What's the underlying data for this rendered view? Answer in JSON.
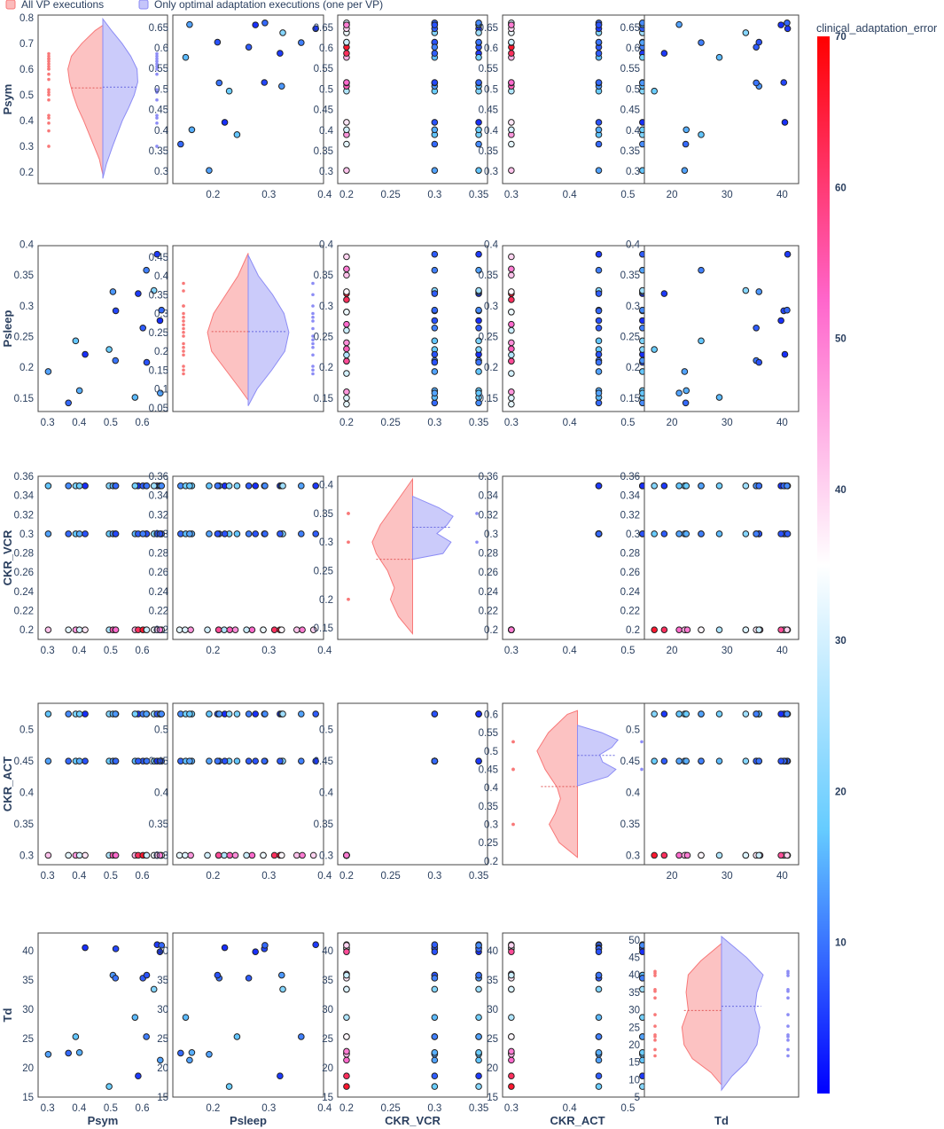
{
  "legend": {
    "all_label": "All VP executions",
    "optimal_label": "Only optimal adaptation executions (one per VP)",
    "all_color": "#f87878",
    "optimal_color": "#8c8cf5"
  },
  "colorbar": {
    "title": "clinical_adaptation_error",
    "range": [
      0,
      70
    ],
    "ticks": [
      "10",
      "20",
      "30",
      "40",
      "50",
      "60",
      "70"
    ],
    "tick_values": [
      10,
      20,
      30,
      40,
      50,
      60,
      70
    ],
    "colorscale": [
      "#0000ff",
      "#66ccff",
      "#ffffff",
      "#ff66cc",
      "#ff0000"
    ]
  },
  "chart_data": {
    "type": "scatter",
    "matrix": "scatter-matrix with split violin diagonal",
    "variables": [
      "Psym",
      "Psleep",
      "CKR_VCR",
      "CKR_ACT",
      "Td"
    ],
    "row_labels": [
      "Psym",
      "Psleep",
      "CKR_VCR",
      "CKR_ACT",
      "Td"
    ],
    "col_labels": [
      "Psym",
      "Psleep",
      "CKR_VCR",
      "CKR_ACT",
      "Td"
    ],
    "ticks": {
      "Psym": [
        "0.3",
        "0.4",
        "0.5",
        "0.6"
      ],
      "Psleep": [
        "0.2",
        "0.3",
        "0.4"
      ],
      "CKR_VCR": [
        "0.2",
        "0.25",
        "0.3",
        "0.35"
      ],
      "CKR_ACT": [
        "0.3",
        "0.4",
        "0.5"
      ],
      "Td": [
        "20",
        "30",
        "40"
      ]
    },
    "row_ticks": {
      "Psym": [
        "0.3",
        "0.35",
        "0.4",
        "0.45",
        "0.5",
        "0.55",
        "0.6",
        "0.65"
      ],
      "Psleep": [
        "0.15",
        "0.2",
        "0.25",
        "0.3",
        "0.35",
        "0.4"
      ],
      "CKR_VCR": [
        "0.2",
        "0.22",
        "0.24",
        "0.26",
        "0.28",
        "0.3",
        "0.32",
        "0.34",
        "0.36"
      ],
      "CKR_ACT": [
        "0.3",
        "0.35",
        "0.4",
        "0.45",
        "0.5"
      ],
      "Td": [
        "15",
        "20",
        "25",
        "30",
        "35",
        "40"
      ]
    },
    "axis_ranges": {
      "Psym": [
        0.27,
        0.68
      ],
      "Psleep": [
        0.128,
        0.398
      ],
      "CKR_VCR": [
        0.19,
        0.36
      ],
      "CKR_ACT": [
        0.285,
        0.542
      ],
      "Td": [
        15,
        43
      ]
    },
    "diagonal": [
      {
        "variable": "Psym",
        "ticks": [
          "0.2",
          "0.3",
          "0.4",
          "0.5",
          "0.6",
          "0.7",
          "0.8"
        ],
        "range": [
          0.155,
          0.81
        ],
        "left_median": 0.527,
        "right_median": 0.53,
        "left_violin": [
          [
            0.19,
            0
          ],
          [
            0.25,
            0.1
          ],
          [
            0.3,
            0.25
          ],
          [
            0.35,
            0.4
          ],
          [
            0.4,
            0.55
          ],
          [
            0.45,
            0.72
          ],
          [
            0.5,
            0.85
          ],
          [
            0.55,
            0.95
          ],
          [
            0.6,
            1
          ],
          [
            0.65,
            0.9
          ],
          [
            0.7,
            0.6
          ],
          [
            0.75,
            0.22
          ],
          [
            0.77,
            0
          ]
        ],
        "right_violin": [
          [
            0.175,
            0
          ],
          [
            0.23,
            0.1
          ],
          [
            0.3,
            0.28
          ],
          [
            0.35,
            0.42
          ],
          [
            0.4,
            0.56
          ],
          [
            0.45,
            0.74
          ],
          [
            0.5,
            0.9
          ],
          [
            0.55,
            1
          ],
          [
            0.6,
            0.98
          ],
          [
            0.65,
            0.8
          ],
          [
            0.7,
            0.55
          ],
          [
            0.75,
            0.25
          ],
          [
            0.795,
            0
          ]
        ],
        "left_points": [
          0.3,
          0.36,
          0.39,
          0.41,
          0.42,
          0.48,
          0.5,
          0.51,
          0.52,
          0.56,
          0.58,
          0.6,
          0.6,
          0.61,
          0.62,
          0.63,
          0.64,
          0.64,
          0.65,
          0.66
        ],
        "right_points": [
          0.3,
          0.39,
          0.41,
          0.42,
          0.48,
          0.51,
          0.52,
          0.58,
          0.6,
          0.61,
          0.62,
          0.63,
          0.64,
          0.65,
          0.66
        ]
      },
      {
        "variable": "Psleep",
        "ticks": [
          "0.05",
          "0.1",
          "0.15",
          "0.2",
          "0.25",
          "0.3",
          "0.35",
          "0.4",
          "0.45"
        ],
        "range": [
          0.04,
          0.48
        ],
        "left_median": 0.252,
        "right_median": 0.252,
        "left_violin": [
          [
            0.07,
            0
          ],
          [
            0.1,
            0.2
          ],
          [
            0.15,
            0.55
          ],
          [
            0.2,
            0.9
          ],
          [
            0.25,
            1
          ],
          [
            0.3,
            0.85
          ],
          [
            0.35,
            0.55
          ],
          [
            0.4,
            0.25
          ],
          [
            0.46,
            0
          ]
        ],
        "right_violin": [
          [
            0.055,
            0
          ],
          [
            0.1,
            0.22
          ],
          [
            0.15,
            0.58
          ],
          [
            0.2,
            0.9
          ],
          [
            0.25,
            1
          ],
          [
            0.3,
            0.88
          ],
          [
            0.35,
            0.6
          ],
          [
            0.4,
            0.25
          ],
          [
            0.455,
            0
          ]
        ],
        "left_points": [
          0.14,
          0.15,
          0.16,
          0.19,
          0.2,
          0.21,
          0.22,
          0.24,
          0.25,
          0.26,
          0.27,
          0.28,
          0.29,
          0.3,
          0.32,
          0.32,
          0.36,
          0.38
        ],
        "right_points": [
          0.14,
          0.15,
          0.16,
          0.19,
          0.21,
          0.22,
          0.23,
          0.24,
          0.26,
          0.28,
          0.29,
          0.3,
          0.32,
          0.35,
          0.38
        ]
      },
      {
        "variable": "CKR_VCR",
        "ticks": [
          "0.15",
          "0.2",
          "0.25",
          "0.3",
          "0.35",
          "0.4"
        ],
        "range": [
          0.13,
          0.415
        ],
        "left_median": 0.27,
        "right_median": 0.326,
        "left_violin": [
          [
            0.14,
            0
          ],
          [
            0.17,
            0.35
          ],
          [
            0.2,
            0.55
          ],
          [
            0.22,
            0.45
          ],
          [
            0.25,
            0.62
          ],
          [
            0.28,
            0.9
          ],
          [
            0.3,
            1
          ],
          [
            0.33,
            0.8
          ],
          [
            0.36,
            0.5
          ],
          [
            0.39,
            0.2
          ],
          [
            0.41,
            0
          ]
        ],
        "right_violin": [
          [
            0.27,
            0
          ],
          [
            0.28,
            0.75
          ],
          [
            0.3,
            0.95
          ],
          [
            0.315,
            0.6
          ],
          [
            0.33,
            0.85
          ],
          [
            0.345,
            1
          ],
          [
            0.36,
            0.65
          ],
          [
            0.38,
            0
          ]
        ],
        "left_points": [
          0.2,
          0.2,
          0.3,
          0.3,
          0.35,
          0.35
        ],
        "right_points": [
          0.3,
          0.35
        ]
      },
      {
        "variable": "CKR_ACT",
        "ticks": [
          "0.2",
          "0.25",
          "0.3",
          "0.35",
          "0.4",
          "0.45",
          "0.5",
          "0.55",
          "0.6"
        ],
        "range": [
          0.19,
          0.63
        ],
        "left_median": 0.403,
        "right_median": 0.488,
        "left_violin": [
          [
            0.21,
            0
          ],
          [
            0.25,
            0.45
          ],
          [
            0.3,
            0.7
          ],
          [
            0.33,
            0.55
          ],
          [
            0.37,
            0.42
          ],
          [
            0.4,
            0.5
          ],
          [
            0.45,
            0.8
          ],
          [
            0.5,
            1
          ],
          [
            0.55,
            0.72
          ],
          [
            0.6,
            0.25
          ],
          [
            0.61,
            0
          ]
        ],
        "right_violin": [
          [
            0.405,
            0
          ],
          [
            0.43,
            0.75
          ],
          [
            0.45,
            0.95
          ],
          [
            0.47,
            0.62
          ],
          [
            0.49,
            0.55
          ],
          [
            0.51,
            0.85
          ],
          [
            0.53,
            1
          ],
          [
            0.55,
            0.6
          ],
          [
            0.57,
            0
          ]
        ],
        "left_points": [
          0.3,
          0.3,
          0.45,
          0.45,
          0.525,
          0.525
        ],
        "right_points": [
          0.45,
          0.525
        ]
      },
      {
        "variable": "Td",
        "ticks": [
          "5",
          "10",
          "15",
          "20",
          "25",
          "30",
          "35",
          "40",
          "45",
          "50"
        ],
        "range": [
          5,
          52
        ],
        "left_median": 29.8,
        "right_median": 31,
        "left_violin": [
          [
            8.5,
            0
          ],
          [
            12,
            0.25
          ],
          [
            16,
            0.7
          ],
          [
            20,
            0.9
          ],
          [
            25,
            0.95
          ],
          [
            30,
            0.8
          ],
          [
            35,
            0.85
          ],
          [
            40,
            0.8
          ],
          [
            44,
            0.5
          ],
          [
            49,
            0
          ]
        ],
        "right_violin": [
          [
            7,
            0
          ],
          [
            11,
            0.25
          ],
          [
            15,
            0.6
          ],
          [
            20,
            0.85
          ],
          [
            25,
            0.92
          ],
          [
            30,
            0.8
          ],
          [
            35,
            0.85
          ],
          [
            40,
            1
          ],
          [
            45,
            0.6
          ],
          [
            51,
            0
          ]
        ],
        "left_points": [
          16.8,
          18.6,
          21.3,
          22.3,
          22.8,
          25.3,
          28.6,
          33.4,
          35.3,
          35.8,
          39.8,
          40.5,
          41
        ],
        "right_points": [
          16.8,
          18.6,
          21.3,
          22.3,
          22.8,
          25.3,
          28.6,
          33.4,
          35.3,
          35.8,
          39.8,
          40.5,
          41
        ]
      }
    ],
    "vps": {
      "fields": [
        "Psym",
        "Psleep",
        "Td",
        "optimal_CKR_VCR",
        "optimal_CKR_ACT",
        "optimal_error"
      ],
      "rows": [
        [
          0.366,
          0.142,
          22.5,
          0.3,
          0.45,
          9
        ],
        [
          0.302,
          0.193,
          22.3,
          0.3,
          0.45,
          14
        ],
        [
          0.389,
          0.243,
          25.3,
          0.3,
          0.45,
          17
        ],
        [
          0.401,
          0.162,
          22.6,
          0.3,
          0.45,
          15
        ],
        [
          0.419,
          0.221,
          40.5,
          0.35,
          0.525,
          4
        ],
        [
          0.495,
          0.229,
          16.8,
          0.3,
          0.45,
          18
        ],
        [
          0.507,
          0.323,
          35.8,
          0.3,
          0.45,
          13
        ],
        [
          0.515,
          0.211,
          35.3,
          0.3,
          0.45,
          10
        ],
        [
          0.516,
          0.292,
          40.3,
          0.3,
          0.525,
          6
        ],
        [
          0.577,
          0.151,
          28.6,
          0.3,
          0.45,
          16
        ],
        [
          0.587,
          0.32,
          18.6,
          0.35,
          0.525,
          5
        ],
        [
          0.602,
          0.264,
          35.3,
          0.35,
          0.45,
          8
        ],
        [
          0.613,
          0.358,
          25.3,
          0.3,
          0.45,
          11
        ],
        [
          0.614,
          0.208,
          35.8,
          0.3,
          0.525,
          7
        ],
        [
          0.637,
          0.325,
          33.4,
          0.3,
          0.45,
          21
        ],
        [
          0.647,
          0.384,
          41,
          0.35,
          0.45,
          5
        ],
        [
          0.657,
          0.158,
          21.3,
          0.3,
          0.45,
          14
        ],
        [
          0.661,
          0.293,
          40.9,
          0.3,
          0.45,
          9
        ],
        [
          0.656,
          0.276,
          39.8,
          0.35,
          0.525,
          4
        ]
      ]
    },
    "executions": {
      "fields": [
        "CKR_VCR",
        "CKR_ACT",
        "Psym",
        "Psleep",
        "Td",
        "error"
      ],
      "rows": [
        [
          0.2,
          0.3,
          0.302,
          0.35,
          40.3,
          42
        ],
        [
          0.2,
          0.3,
          0.366,
          0.14,
          41,
          32
        ],
        [
          0.2,
          0.3,
          0.389,
          0.16,
          36,
          47
        ],
        [
          0.2,
          0.3,
          0.401,
          0.19,
          33.4,
          30
        ],
        [
          0.2,
          0.3,
          0.419,
          0.21,
          35.3,
          38
        ],
        [
          0.2,
          0.3,
          0.495,
          0.22,
          28.6,
          26
        ],
        [
          0.2,
          0.3,
          0.507,
          0.23,
          25.3,
          54
        ],
        [
          0.2,
          0.3,
          0.515,
          0.24,
          22.5,
          48
        ],
        [
          0.2,
          0.3,
          0.516,
          0.27,
          21.3,
          52
        ],
        [
          0.2,
          0.3,
          0.577,
          0.29,
          22.3,
          44
        ],
        [
          0.2,
          0.3,
          0.587,
          0.31,
          18.6,
          62
        ],
        [
          0.2,
          0.3,
          0.602,
          0.32,
          16.8,
          66
        ],
        [
          0.2,
          0.3,
          0.613,
          0.323,
          25.3,
          36
        ],
        [
          0.2,
          0.3,
          0.614,
          0.26,
          35.8,
          29
        ],
        [
          0.2,
          0.3,
          0.637,
          0.29,
          40.5,
          33
        ],
        [
          0.2,
          0.3,
          0.647,
          0.38,
          40.9,
          40
        ],
        [
          0.2,
          0.3,
          0.657,
          0.21,
          39.8,
          57
        ],
        [
          0.2,
          0.3,
          0.661,
          0.15,
          33.4,
          31
        ],
        [
          0.2,
          0.3,
          0.656,
          0.36,
          22.8,
          50
        ]
      ]
    }
  }
}
